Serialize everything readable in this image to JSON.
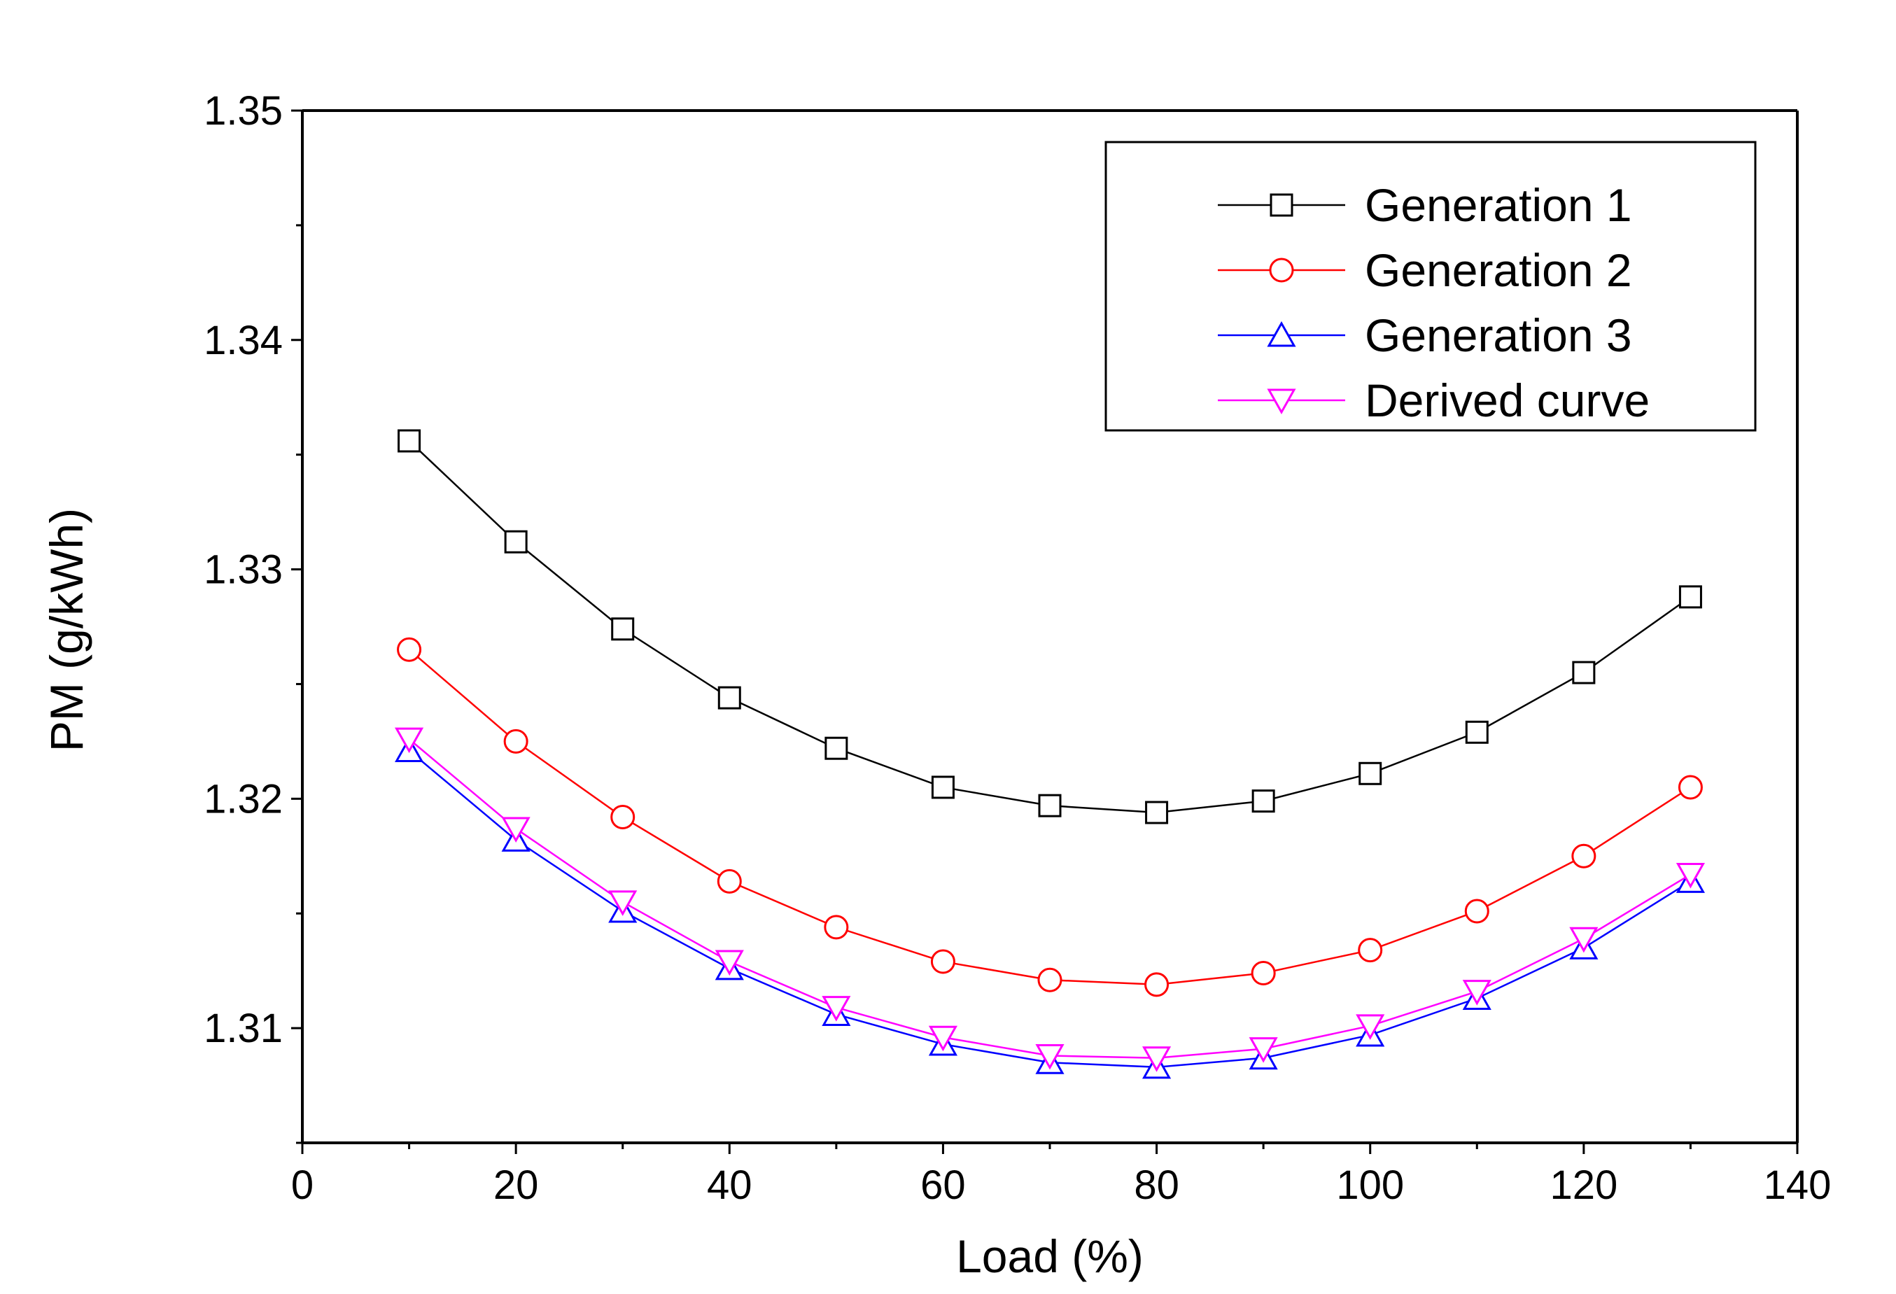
{
  "chart_data": {
    "type": "line",
    "title": "",
    "xlabel": "Load (%)",
    "ylabel": "PM (g/kWh)",
    "xlim": [
      0,
      140
    ],
    "ylim": [
      1.305,
      1.35
    ],
    "xticks": [
      0,
      20,
      40,
      60,
      80,
      100,
      120,
      140
    ],
    "xtick_labels": [
      "0",
      "20",
      "40",
      "60",
      "80",
      "100",
      "120",
      "140"
    ],
    "yticks": [
      1.31,
      1.32,
      1.33,
      1.34,
      1.35
    ],
    "ytick_labels": [
      "1.31",
      "1.32",
      "1.33",
      "1.34",
      "1.35"
    ],
    "grid": false,
    "legend_position": "top-right",
    "x": [
      10,
      20,
      30,
      40,
      50,
      60,
      70,
      80,
      90,
      100,
      110,
      120,
      130
    ],
    "series": [
      {
        "name": "Generation 1",
        "color": "#000000",
        "marker": "square",
        "values": [
          1.3356,
          1.3312,
          1.3274,
          1.3244,
          1.3222,
          1.3205,
          1.3197,
          1.3194,
          1.3199,
          1.3211,
          1.3229,
          1.3255,
          1.3288
        ]
      },
      {
        "name": "Generation 2",
        "color": "#ff0000",
        "marker": "circle",
        "values": [
          1.3265,
          1.3225,
          1.3192,
          1.3164,
          1.3144,
          1.3129,
          1.3121,
          1.3119,
          1.3124,
          1.3134,
          1.3151,
          1.3175,
          1.3205
        ]
      },
      {
        "name": "Generation 3",
        "color": "#0000ff",
        "marker": "triangle-up",
        "values": [
          1.3221,
          1.3182,
          1.3151,
          1.3126,
          1.3106,
          1.3093,
          1.3085,
          1.3083,
          1.3087,
          1.3097,
          1.3113,
          1.3135,
          1.3164
        ]
      },
      {
        "name": "Derived curve",
        "color": "#ff00ff",
        "marker": "triangle-down",
        "values": [
          1.3226,
          1.3187,
          1.3155,
          1.3129,
          1.3109,
          1.3096,
          1.3088,
          1.3087,
          1.3091,
          1.3101,
          1.3116,
          1.3139,
          1.3167
        ]
      }
    ]
  }
}
